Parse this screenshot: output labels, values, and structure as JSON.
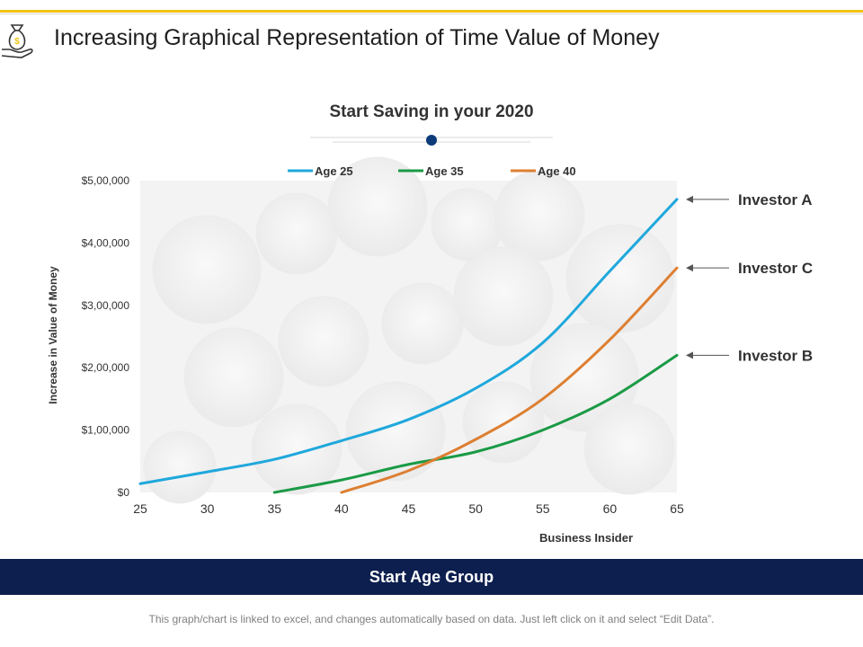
{
  "page": {
    "title": "Increasing Graphical Representation of Time Value of Money",
    "footer_label": "Start Age Group",
    "note": "This graph/chart is linked to excel, and changes automatically based on data. Just left click on it and select “Edit Data”.",
    "accent_color": "#f2c311",
    "footer_color": "#0d1f4f",
    "icon": "money-bag-in-hand-icon"
  },
  "chart_data": {
    "type": "line",
    "title": "Start Saving in your 2020",
    "ylabel": "Increase in Value of Money",
    "source": "Business Insider",
    "xticks": [
      "25",
      "30",
      "35",
      "40",
      "45",
      "50",
      "55",
      "60",
      "65"
    ],
    "yticks": [
      "$0",
      "$1,00,000",
      "$2,00,000",
      "$3,00,000",
      "$4,00,000",
      "$5,00,000"
    ],
    "xlim": [
      25,
      65
    ],
    "ylim": [
      0,
      500000
    ],
    "legend_position": "top-center",
    "series": [
      {
        "name": "Age 25",
        "color": "#1fa8dc",
        "points": [
          [
            25,
            14000
          ],
          [
            30,
            33000
          ],
          [
            35,
            53000
          ],
          [
            40,
            83000
          ],
          [
            45,
            117000
          ],
          [
            50,
            167000
          ],
          [
            55,
            240000
          ],
          [
            60,
            355000
          ],
          [
            65,
            470000
          ]
        ]
      },
      {
        "name": "Age 35",
        "color": "#1a9a45",
        "points": [
          [
            35,
            0
          ],
          [
            40,
            20000
          ],
          [
            45,
            45000
          ],
          [
            50,
            65000
          ],
          [
            55,
            100000
          ],
          [
            60,
            150000
          ],
          [
            65,
            220000
          ]
        ]
      },
      {
        "name": "Age 40",
        "color": "#dd7f32",
        "points": [
          [
            40,
            0
          ],
          [
            45,
            35000
          ],
          [
            50,
            85000
          ],
          [
            55,
            150000
          ],
          [
            60,
            245000
          ],
          [
            65,
            360000
          ]
        ]
      }
    ],
    "annotations": [
      {
        "text": "Investor A",
        "series": "Age 25"
      },
      {
        "text": "Investor C",
        "series": "Age 40"
      },
      {
        "text": "Investor B",
        "series": "Age 35"
      }
    ]
  }
}
